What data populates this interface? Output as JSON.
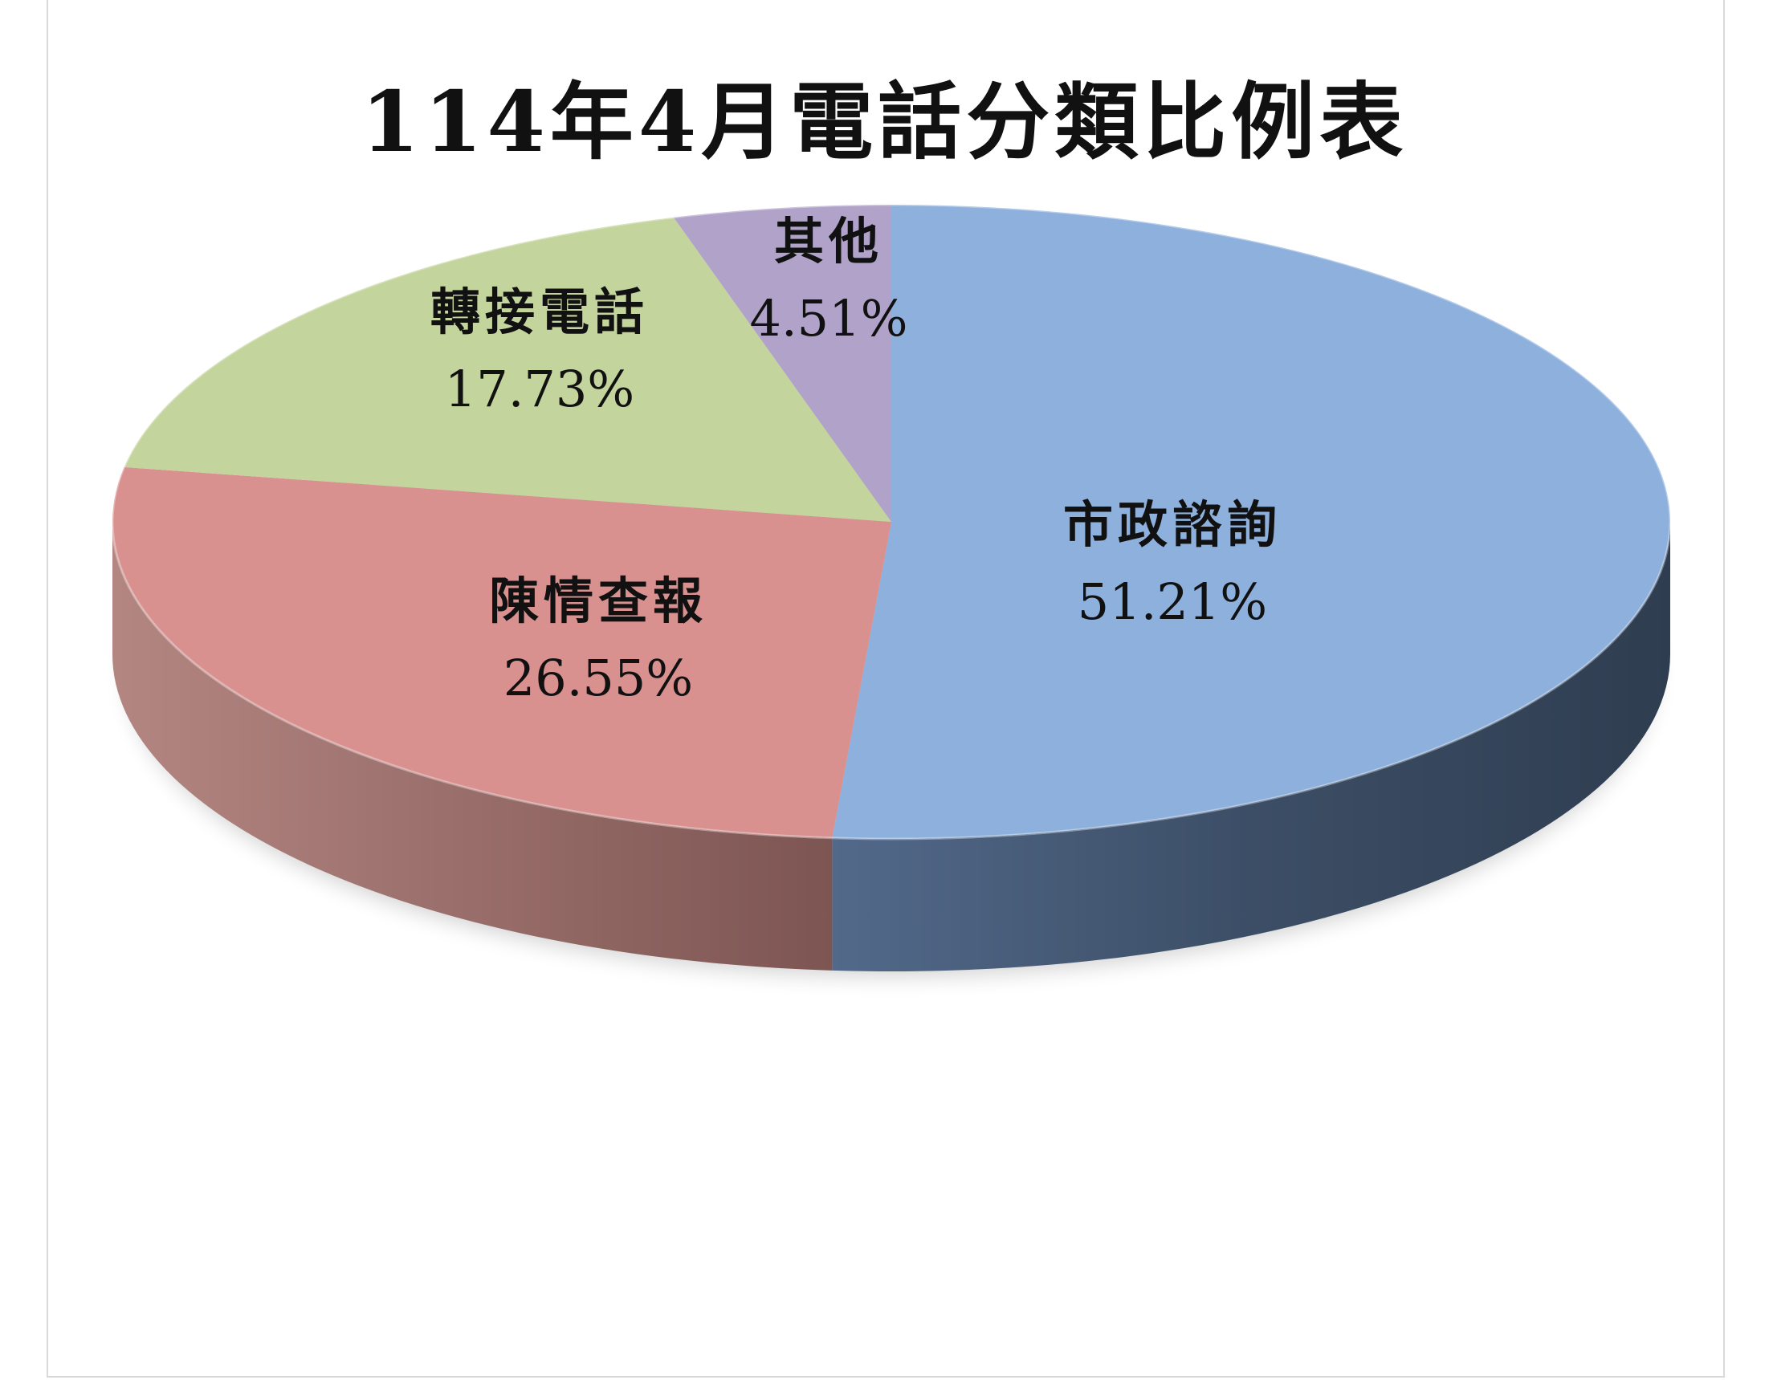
{
  "chart_data": {
    "type": "pie",
    "title": "114年4月電話分類比例表",
    "three_d": true,
    "slices": [
      {
        "label": "市政諮詢",
        "value": 51.21,
        "value_label": "51.21%",
        "color": "#8db0dd",
        "side_color": "#3d5068"
      },
      {
        "label": "陳情查報",
        "value": 26.55,
        "value_label": "26.55%",
        "color": "#d99190",
        "side_color": "#a7736f"
      },
      {
        "label": "轉接電話",
        "value": 17.73,
        "value_label": "17.73%",
        "color": "#c3d49c",
        "side_color": "#8fa06a"
      },
      {
        "label": "其他",
        "value": 4.51,
        "value_label": "4.51%",
        "color": "#b0a2c9",
        "side_color": "#7f7396"
      }
    ]
  }
}
